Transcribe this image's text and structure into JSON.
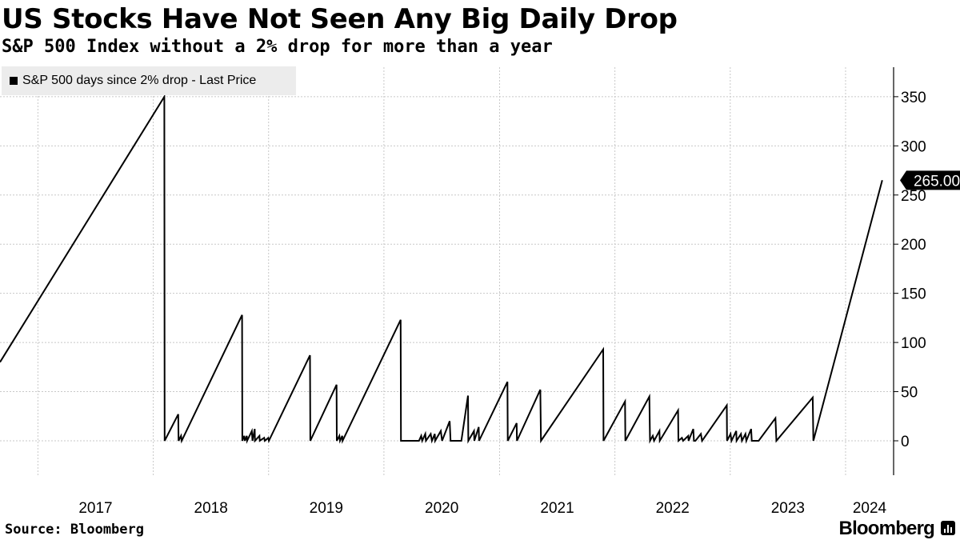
{
  "header": {
    "title": "US Stocks Have Not Seen Any Big Daily Drop",
    "subtitle": "S&P 500 Index without a 2% drop for more than a year"
  },
  "footer": {
    "source": "Source: Bloomberg",
    "brand": "Bloomberg"
  },
  "colors": {
    "line": "#000000",
    "grid": "#c8c8c8",
    "legend_bg": "#ececec",
    "label_bg": "#000000"
  },
  "chart_data": {
    "type": "line",
    "title": "US Stocks Have Not Seen Any Big Daily Drop",
    "subtitle": "S&P 500 Index without a 2% drop for more than a year",
    "legend": {
      "placement": "top-left",
      "entries": [
        "S&P 500 days since 2% drop - Last Price"
      ]
    },
    "xlabel": "",
    "ylabel": "",
    "x_type": "date",
    "xlim": [
      "2016-09-03",
      "2024-06-01"
    ],
    "ylim": [
      -35,
      380
    ],
    "y_ticks": [
      0,
      50,
      100,
      150,
      200,
      250,
      300,
      350
    ],
    "y_tick_labels": [
      "0",
      "50",
      "100",
      "150",
      "200",
      "250",
      "300",
      "350"
    ],
    "y_axis_position": "right",
    "x_tick_labels": [
      "2017",
      "2018",
      "2019",
      "2020",
      "2021",
      "2022",
      "2023",
      "2024"
    ],
    "grid": true,
    "last_value_label": "265.00",
    "series": [
      {
        "name": "S&P 500 days since 2% drop - Last Price",
        "color": "#000000",
        "points": [
          [
            "2016-09-03",
            80
          ],
          [
            "2018-02-05",
            350
          ],
          [
            "2018-02-06",
            0
          ],
          [
            "2018-03-21",
            27
          ],
          [
            "2018-03-22",
            0
          ],
          [
            "2018-03-30",
            5
          ],
          [
            "2018-04-01",
            0
          ],
          [
            "2018-10-09",
            128
          ],
          [
            "2018-10-10",
            0
          ],
          [
            "2018-10-16",
            5
          ],
          [
            "2018-10-18",
            0
          ],
          [
            "2018-10-24",
            5
          ],
          [
            "2018-10-25",
            0
          ],
          [
            "2018-11-09",
            10
          ],
          [
            "2018-11-11",
            0
          ],
          [
            "2018-11-18",
            12
          ],
          [
            "2018-11-19",
            0
          ],
          [
            "2018-12-03",
            5
          ],
          [
            "2018-12-04",
            0
          ],
          [
            "2018-12-18",
            3
          ],
          [
            "2018-12-20",
            0
          ],
          [
            "2018-12-31",
            3
          ],
          [
            "2019-01-02",
            0
          ],
          [
            "2019-05-12",
            87
          ],
          [
            "2019-05-13",
            0
          ],
          [
            "2019-08-04",
            57
          ],
          [
            "2019-08-05",
            0
          ],
          [
            "2019-08-13",
            5
          ],
          [
            "2019-08-15",
            0
          ],
          [
            "2019-08-22",
            5
          ],
          [
            "2019-08-23",
            0
          ],
          [
            "2020-02-23",
            123
          ],
          [
            "2020-02-24",
            0
          ],
          [
            "2020-04-21",
            0
          ],
          [
            "2020-04-28",
            5
          ],
          [
            "2020-05-01",
            0
          ],
          [
            "2020-05-11",
            7
          ],
          [
            "2020-05-13",
            0
          ],
          [
            "2020-05-28",
            7
          ],
          [
            "2020-06-01",
            0
          ],
          [
            "2020-06-10",
            7
          ],
          [
            "2020-06-11",
            0
          ],
          [
            "2020-06-29",
            10
          ],
          [
            "2020-07-03",
            0
          ],
          [
            "2020-07-27",
            20
          ],
          [
            "2020-07-30",
            0
          ],
          [
            "2020-09-02",
            0
          ],
          [
            "2020-09-23",
            46
          ],
          [
            "2020-09-24",
            0
          ],
          [
            "2020-10-12",
            10
          ],
          [
            "2020-10-13",
            0
          ],
          [
            "2020-10-27",
            14
          ],
          [
            "2020-10-28",
            0
          ],
          [
            "2021-01-26",
            60
          ],
          [
            "2021-01-27",
            0
          ],
          [
            "2021-02-24",
            18
          ],
          [
            "2021-02-25",
            0
          ],
          [
            "2021-05-10",
            52
          ],
          [
            "2021-05-12",
            0
          ],
          [
            "2021-11-25",
            93
          ],
          [
            "2021-11-26",
            0
          ],
          [
            "2022-02-02",
            40
          ],
          [
            "2022-02-03",
            0
          ],
          [
            "2022-04-20",
            45
          ],
          [
            "2022-04-22",
            0
          ],
          [
            "2022-05-01",
            5
          ],
          [
            "2022-05-05",
            0
          ],
          [
            "2022-05-22",
            10
          ],
          [
            "2022-05-23",
            0
          ],
          [
            "2022-07-20",
            31
          ],
          [
            "2022-07-21",
            0
          ],
          [
            "2022-08-01",
            3
          ],
          [
            "2022-08-05",
            0
          ],
          [
            "2022-08-21",
            5
          ],
          [
            "2022-08-22",
            0
          ],
          [
            "2022-09-06",
            12
          ],
          [
            "2022-09-08",
            0
          ],
          [
            "2022-09-13",
            0
          ],
          [
            "2022-09-30",
            7
          ],
          [
            "2022-10-04",
            0
          ],
          [
            "2022-12-21",
            36
          ],
          [
            "2022-12-22",
            0
          ],
          [
            "2023-01-02",
            7
          ],
          [
            "2023-01-05",
            0
          ],
          [
            "2023-01-20",
            10
          ],
          [
            "2023-01-21",
            0
          ],
          [
            "2023-02-04",
            7
          ],
          [
            "2023-02-07",
            0
          ],
          [
            "2023-02-18",
            7
          ],
          [
            "2023-02-21",
            0
          ],
          [
            "2023-03-08",
            12
          ],
          [
            "2023-03-10",
            0
          ],
          [
            "2023-04-01",
            0
          ],
          [
            "2023-05-24",
            23
          ],
          [
            "2023-05-27",
            0
          ],
          [
            "2023-09-19",
            44
          ],
          [
            "2023-09-21",
            0
          ],
          [
            "2024-04-26",
            265
          ]
        ]
      }
    ]
  }
}
